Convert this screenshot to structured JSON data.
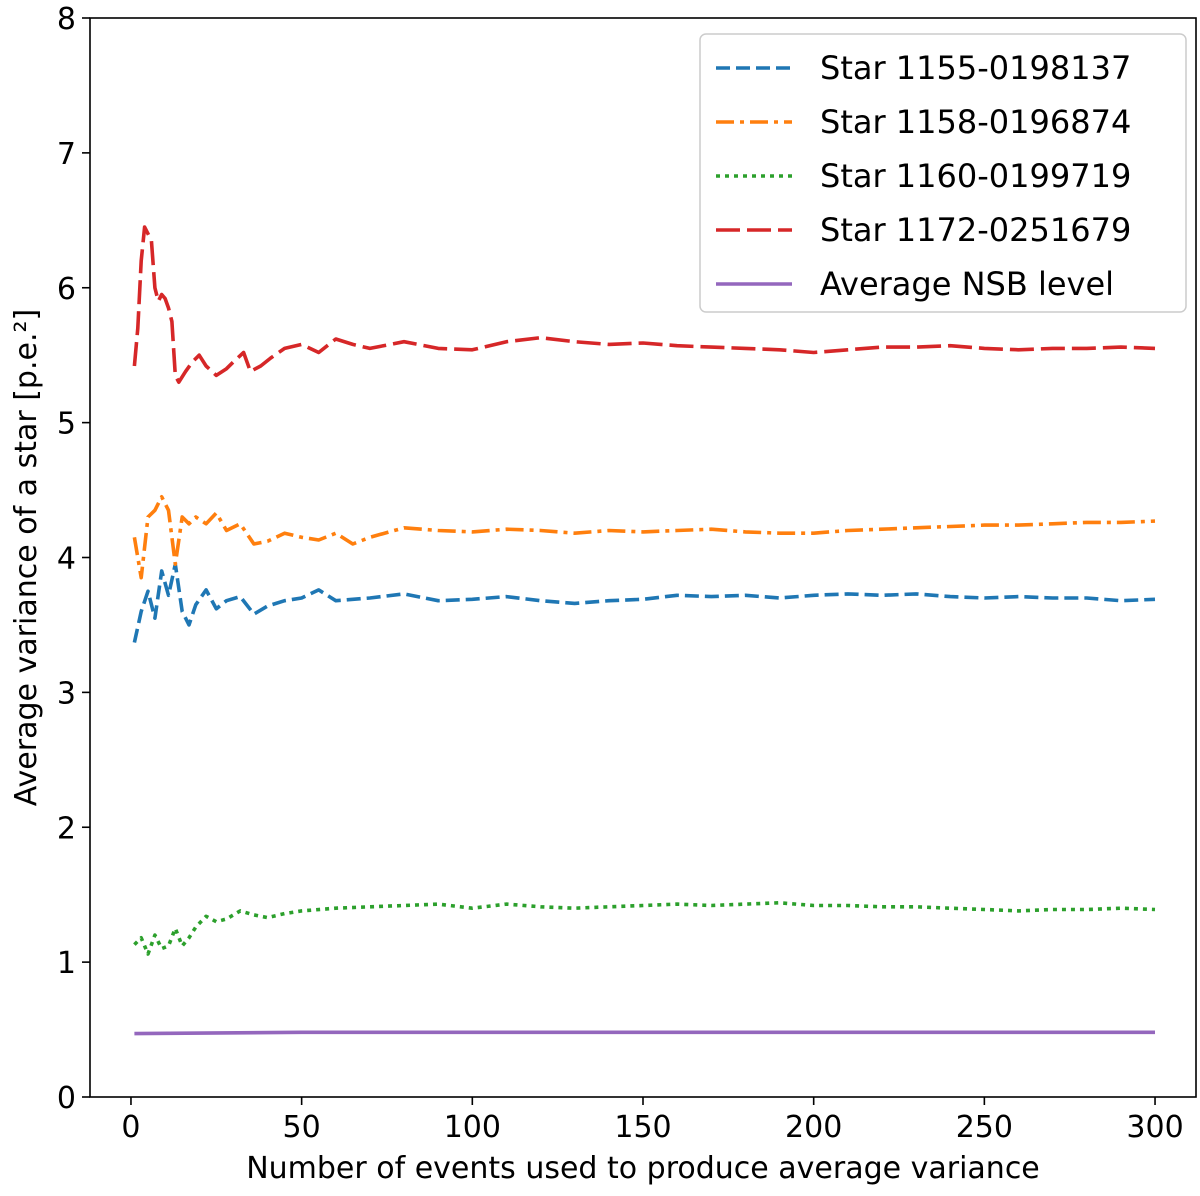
{
  "chart_data": {
    "type": "line",
    "title": "",
    "xlabel": "Number of events used to produce average variance",
    "ylabel": "Average variance of a star [p.e.²]",
    "xlim": [
      -12,
      312
    ],
    "ylim": [
      0,
      8
    ],
    "xticks": [
      0,
      50,
      100,
      150,
      200,
      250,
      300
    ],
    "yticks": [
      0,
      1,
      2,
      3,
      4,
      5,
      6,
      7,
      8
    ],
    "grid": false,
    "legend_position": "upper right",
    "series": [
      {
        "name": "Star 1155-0198137",
        "color": "#1f77b4",
        "dash": "dashed",
        "x": [
          1,
          3,
          5,
          7,
          9,
          11,
          13,
          15,
          17,
          19,
          22,
          25,
          28,
          32,
          36,
          40,
          45,
          50,
          55,
          60,
          70,
          80,
          90,
          100,
          110,
          120,
          130,
          140,
          150,
          160,
          170,
          180,
          190,
          200,
          210,
          220,
          230,
          240,
          250,
          260,
          270,
          280,
          290,
          300
        ],
        "y": [
          3.37,
          3.6,
          3.75,
          3.55,
          3.9,
          3.72,
          3.95,
          3.6,
          3.5,
          3.65,
          3.76,
          3.62,
          3.68,
          3.71,
          3.58,
          3.64,
          3.68,
          3.7,
          3.76,
          3.68,
          3.7,
          3.73,
          3.68,
          3.69,
          3.71,
          3.68,
          3.66,
          3.68,
          3.69,
          3.72,
          3.71,
          3.72,
          3.7,
          3.72,
          3.73,
          3.72,
          3.73,
          3.71,
          3.7,
          3.71,
          3.7,
          3.7,
          3.68,
          3.69
        ]
      },
      {
        "name": "Star 1158-0196874",
        "color": "#ff7f0e",
        "dash": "dashdot",
        "x": [
          1,
          3,
          5,
          7,
          9,
          11,
          13,
          15,
          17,
          19,
          22,
          25,
          28,
          32,
          36,
          40,
          45,
          50,
          55,
          60,
          65,
          70,
          80,
          90,
          100,
          110,
          120,
          130,
          140,
          150,
          160,
          170,
          180,
          190,
          200,
          210,
          220,
          230,
          240,
          250,
          260,
          270,
          280,
          290,
          300
        ],
        "y": [
          4.15,
          3.85,
          4.3,
          4.35,
          4.45,
          4.35,
          3.95,
          4.3,
          4.25,
          4.3,
          4.25,
          4.33,
          4.2,
          4.25,
          4.1,
          4.12,
          4.18,
          4.15,
          4.13,
          4.18,
          4.1,
          4.15,
          4.22,
          4.2,
          4.19,
          4.21,
          4.2,
          4.18,
          4.2,
          4.19,
          4.2,
          4.21,
          4.19,
          4.18,
          4.18,
          4.2,
          4.21,
          4.22,
          4.23,
          4.24,
          4.24,
          4.25,
          4.26,
          4.26,
          4.27
        ]
      },
      {
        "name": "Star 1160-0199719",
        "color": "#2ca02c",
        "dash": "dotted",
        "x": [
          1,
          3,
          5,
          7,
          9,
          11,
          13,
          15,
          17,
          19,
          22,
          25,
          28,
          32,
          36,
          40,
          45,
          50,
          60,
          70,
          80,
          90,
          100,
          110,
          120,
          130,
          140,
          150,
          160,
          170,
          180,
          190,
          200,
          210,
          220,
          230,
          240,
          250,
          260,
          270,
          280,
          290,
          300
        ],
        "y": [
          1.13,
          1.18,
          1.06,
          1.2,
          1.1,
          1.12,
          1.25,
          1.12,
          1.18,
          1.26,
          1.34,
          1.3,
          1.32,
          1.38,
          1.35,
          1.33,
          1.36,
          1.38,
          1.4,
          1.41,
          1.42,
          1.43,
          1.4,
          1.43,
          1.41,
          1.4,
          1.41,
          1.42,
          1.43,
          1.42,
          1.43,
          1.44,
          1.42,
          1.42,
          1.41,
          1.41,
          1.4,
          1.39,
          1.38,
          1.39,
          1.39,
          1.4,
          1.39
        ]
      },
      {
        "name": "Star 1172-0251679",
        "color": "#d62728",
        "dash": "longdash",
        "x": [
          1,
          2,
          3,
          4,
          5,
          6,
          7,
          8,
          9,
          10,
          11,
          12,
          13,
          14,
          16,
          18,
          20,
          22,
          25,
          28,
          30,
          33,
          35,
          38,
          41,
          45,
          50,
          55,
          60,
          65,
          70,
          80,
          90,
          100,
          110,
          120,
          130,
          140,
          150,
          160,
          170,
          180,
          190,
          200,
          210,
          220,
          230,
          240,
          250,
          260,
          270,
          280,
          290,
          300
        ],
        "y": [
          5.42,
          5.7,
          6.2,
          6.45,
          6.4,
          6.35,
          6.0,
          5.9,
          5.95,
          5.92,
          5.85,
          5.75,
          5.35,
          5.3,
          5.38,
          5.45,
          5.5,
          5.42,
          5.35,
          5.4,
          5.45,
          5.52,
          5.38,
          5.42,
          5.48,
          5.55,
          5.58,
          5.52,
          5.62,
          5.58,
          5.55,
          5.6,
          5.55,
          5.54,
          5.6,
          5.63,
          5.6,
          5.58,
          5.59,
          5.57,
          5.56,
          5.55,
          5.54,
          5.52,
          5.54,
          5.56,
          5.56,
          5.57,
          5.55,
          5.54,
          5.55,
          5.55,
          5.56,
          5.55
        ]
      },
      {
        "name": "Average NSB level",
        "color": "#9467bd",
        "dash": "solid",
        "x": [
          1,
          50,
          100,
          150,
          200,
          250,
          300
        ],
        "y": [
          0.47,
          0.48,
          0.48,
          0.48,
          0.48,
          0.48,
          0.48
        ]
      }
    ]
  }
}
